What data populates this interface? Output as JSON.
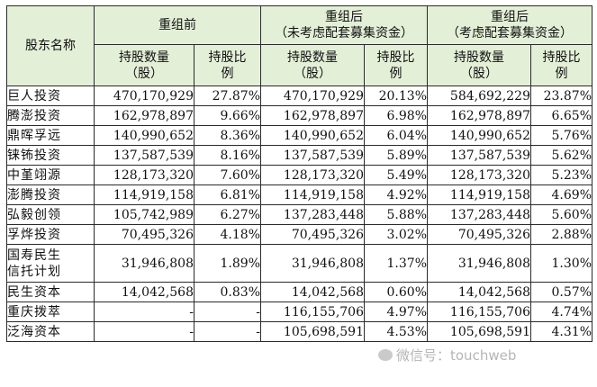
{
  "headers": {
    "shareholder": "股东名称",
    "group_before": "重组前",
    "group_after_excl": [
      "重组后",
      "（未考虑配套募集资金）"
    ],
    "group_after_incl": [
      "重组后",
      "（考虑配套募集资金）"
    ],
    "shares": [
      "持股数量",
      "（股）"
    ],
    "ratio": [
      "持股比",
      "例"
    ]
  },
  "rows": [
    {
      "name": [
        "巨人投资"
      ],
      "b_shares": "470,170,929",
      "b_ratio": "27.87%",
      "a1_shares": "470,170,929",
      "a1_ratio": "20.13%",
      "a2_shares": "584,692,229",
      "a2_ratio": "23.87%"
    },
    {
      "name": [
        "腾澎投资"
      ],
      "b_shares": "162,978,897",
      "b_ratio": "9.66%",
      "a1_shares": "162,978,897",
      "a1_ratio": "6.98%",
      "a2_shares": "162,978,897",
      "a2_ratio": "6.65%"
    },
    {
      "name": [
        "鼎晖孚远"
      ],
      "b_shares": "140,990,652",
      "b_ratio": "8.36%",
      "a1_shares": "140,990,652",
      "a1_ratio": "6.04%",
      "a2_shares": "140,990,652",
      "a2_ratio": "5.76%"
    },
    {
      "name": [
        "铼钸投资"
      ],
      "b_shares": "137,587,539",
      "b_ratio": "8.16%",
      "a1_shares": "137,587,539",
      "a1_ratio": "5.89%",
      "a2_shares": "137,587,539",
      "a2_ratio": "5.62%"
    },
    {
      "name": [
        "中堇翊源"
      ],
      "b_shares": "128,173,320",
      "b_ratio": "7.60%",
      "a1_shares": "128,173,320",
      "a1_ratio": "5.49%",
      "a2_shares": "128,173,320",
      "a2_ratio": "5.23%"
    },
    {
      "name": [
        "澎腾投资"
      ],
      "b_shares": "114,919,158",
      "b_ratio": "6.81%",
      "a1_shares": "114,919,158",
      "a1_ratio": "4.92%",
      "a2_shares": "114,919,158",
      "a2_ratio": "4.69%"
    },
    {
      "name": [
        "弘毅创领"
      ],
      "b_shares": "105,742,989",
      "b_ratio": "6.27%",
      "a1_shares": "137,283,448",
      "a1_ratio": "5.88%",
      "a2_shares": "137,283,448",
      "a2_ratio": "5.60%"
    },
    {
      "name": [
        "孚烨投资"
      ],
      "b_shares": "70,495,326",
      "b_ratio": "4.18%",
      "a1_shares": "70,495,326",
      "a1_ratio": "3.02%",
      "a2_shares": "70,495,326",
      "a2_ratio": "2.88%"
    },
    {
      "name": [
        "国寿民生",
        "信托计划"
      ],
      "b_shares": "31,946,808",
      "b_ratio": "1.89%",
      "a1_shares": "31,946,808",
      "a1_ratio": "1.37%",
      "a2_shares": "31,946,808",
      "a2_ratio": "1.30%"
    },
    {
      "name": [
        "民生资本"
      ],
      "b_shares": "14,042,568",
      "b_ratio": "0.83%",
      "a1_shares": "14,042,568",
      "a1_ratio": "0.60%",
      "a2_shares": "14,042,568",
      "a2_ratio": "0.57%"
    },
    {
      "name": [
        "重庆拨萃"
      ],
      "b_shares": "-",
      "b_ratio": "-",
      "a1_shares": "116,155,706",
      "a1_ratio": "4.97%",
      "a2_shares": "116,155,706",
      "a2_ratio": "4.74%"
    },
    {
      "name": [
        "泛海资本"
      ],
      "b_shares": "-",
      "b_ratio": "-",
      "a1_shares": "105,698,591",
      "a1_ratio": "4.53%",
      "a2_shares": "105,698,591",
      "a2_ratio": "4.31%"
    }
  ],
  "watermark": "微信号：touchweb"
}
